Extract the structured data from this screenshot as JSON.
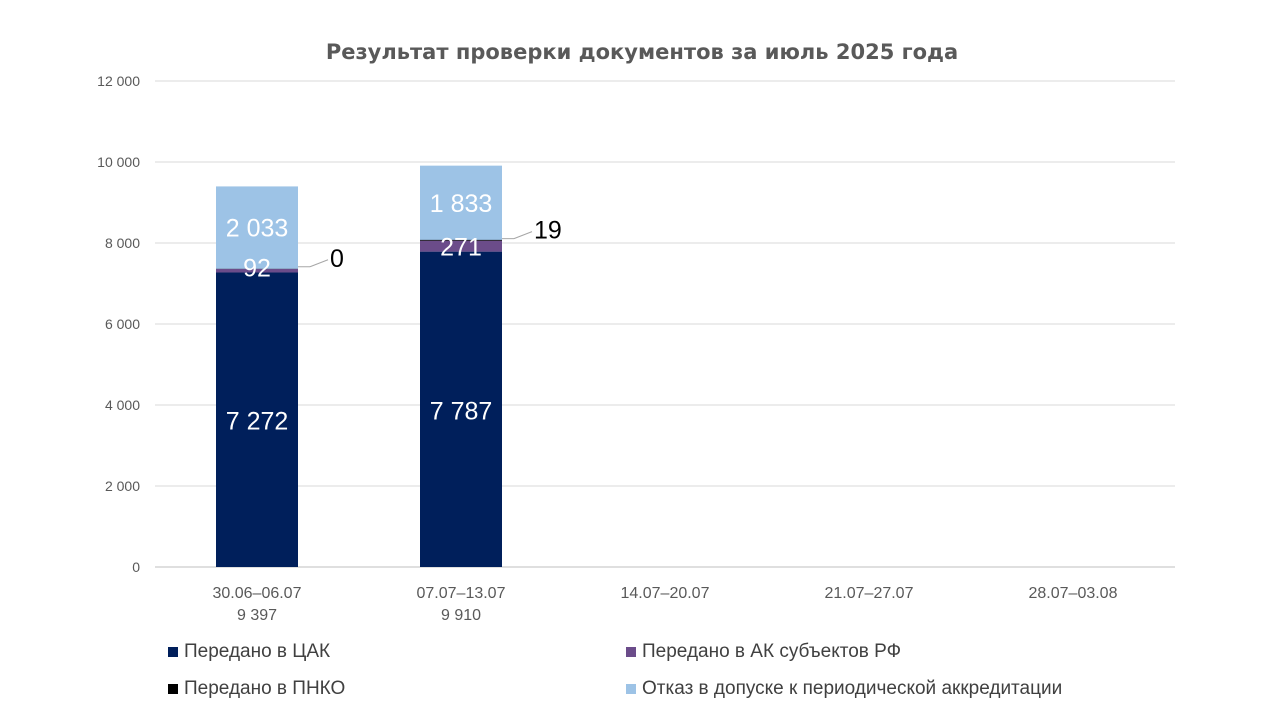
{
  "chart_data": {
    "type": "bar",
    "stacked": true,
    "title": "Результат проверки документов за июль 2025 года",
    "categories": [
      "30.06–06.07",
      "07.07–13.07",
      "14.07–20.07",
      "21.07–27.07",
      "28.07–03.08"
    ],
    "category_totals": [
      "9 397",
      "9 910",
      "",
      "",
      ""
    ],
    "ylim": [
      0,
      12000
    ],
    "yticks": [
      0,
      2000,
      4000,
      6000,
      8000,
      10000,
      12000
    ],
    "ytick_labels": [
      "0",
      "2 000",
      "4 000",
      "6 000",
      "8 000",
      "10 000",
      "12 000"
    ],
    "grid": true,
    "legend_position": "bottom",
    "series": [
      {
        "name": "Передано в ЦАК",
        "color": "#001f5b",
        "values": [
          7272,
          7787,
          null,
          null,
          null
        ],
        "labels": [
          "7 272",
          "7 787",
          "",
          "",
          ""
        ]
      },
      {
        "name": "Передано в АК субъектов РФ",
        "color": "#6b4c8a",
        "values": [
          92,
          271,
          null,
          null,
          null
        ],
        "labels": [
          "92",
          "271",
          "",
          "",
          ""
        ]
      },
      {
        "name": "Передано в ПНКО",
        "color": "#000000",
        "values": [
          0,
          19,
          null,
          null,
          null
        ],
        "labels": [
          "0",
          "19",
          "",
          "",
          ""
        ]
      },
      {
        "name": "Отказ в допуске к периодической аккредитации",
        "color": "#9dc3e6",
        "values": [
          2033,
          1833,
          null,
          null,
          null
        ],
        "labels": [
          "2 033",
          "1 833",
          "",
          "",
          ""
        ]
      }
    ]
  }
}
